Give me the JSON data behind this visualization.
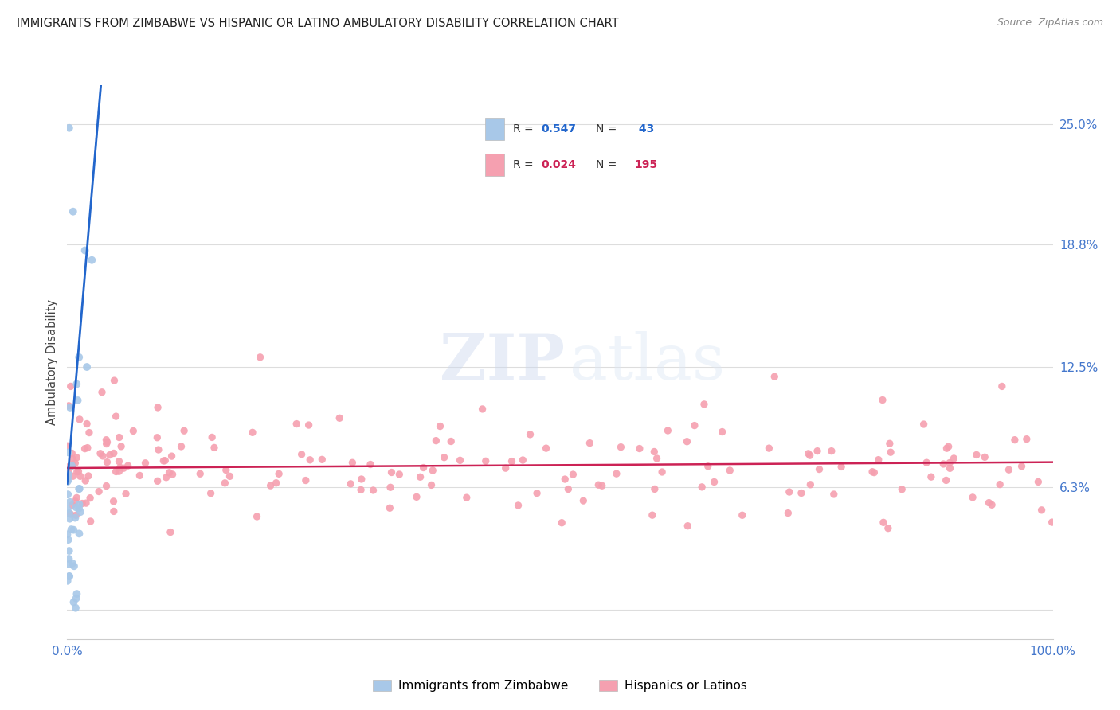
{
  "title": "IMMIGRANTS FROM ZIMBABWE VS HISPANIC OR LATINO AMBULATORY DISABILITY CORRELATION CHART",
  "source": "Source: ZipAtlas.com",
  "ylabel": "Ambulatory Disability",
  "watermark_zip": "ZIP",
  "watermark_atlas": "atlas",
  "legend_r1_label": "R = ",
  "legend_r1_val": "0.547",
  "legend_n1_label": "N = ",
  "legend_n1_val": " 43",
  "legend_r2_label": "R = ",
  "legend_r2_val": "0.024",
  "legend_n2_label": "N = ",
  "legend_n2_val": "195",
  "series1_color": "#a8c8e8",
  "series2_color": "#f5a0b0",
  "line1_color": "#2266cc",
  "line2_color": "#cc2255",
  "series1_label": "Immigrants from Zimbabwe",
  "series2_label": "Hispanics or Latinos",
  "background_color": "#ffffff",
  "grid_color": "#dddddd",
  "title_color": "#222222",
  "axis_label_color": "#4477cc",
  "ylabel_color": "#444444",
  "source_color": "#888888",
  "seed": 7,
  "n1": 43,
  "n2": 195,
  "xmin": 0.0,
  "xmax": 1.0,
  "ymin": -0.015,
  "ymax": 0.27,
  "ytick_vals": [
    0.0,
    0.063,
    0.125,
    0.188,
    0.25
  ],
  "ytick_labels": [
    "",
    "6.3%",
    "12.5%",
    "18.8%",
    "25.0%"
  ]
}
